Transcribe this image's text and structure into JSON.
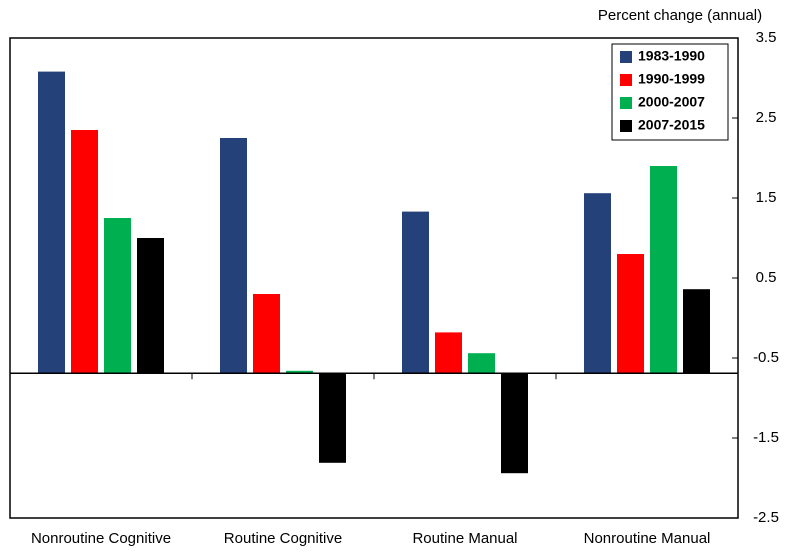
{
  "chart_data": {
    "type": "bar",
    "title": "Percent change (annual)",
    "categories": [
      "Nonroutine Cognitive",
      "Routine Cognitive",
      "Routine Manual",
      "Nonroutine Manual"
    ],
    "series": [
      {
        "name": "1983-1990",
        "color": "#24417a",
        "values": [
          3.08,
          2.25,
          1.33,
          1.56
        ]
      },
      {
        "name": "1990-1999",
        "color": "#ff0000",
        "values": [
          2.35,
          0.3,
          -0.18,
          0.8
        ]
      },
      {
        "name": "2000-2007",
        "color": "#00b050",
        "values": [
          1.25,
          -0.66,
          -0.44,
          1.9
        ]
      },
      {
        "name": "2007-2015",
        "color": "#000000",
        "values": [
          1.0,
          -1.81,
          -1.94,
          0.36
        ]
      }
    ],
    "baseline": -0.69,
    "ylim": [
      -2.5,
      3.5
    ],
    "yticks": [
      -2.5,
      -1.5,
      -0.5,
      0.5,
      1.5,
      2.5,
      3.5
    ],
    "legend": "top-right"
  }
}
